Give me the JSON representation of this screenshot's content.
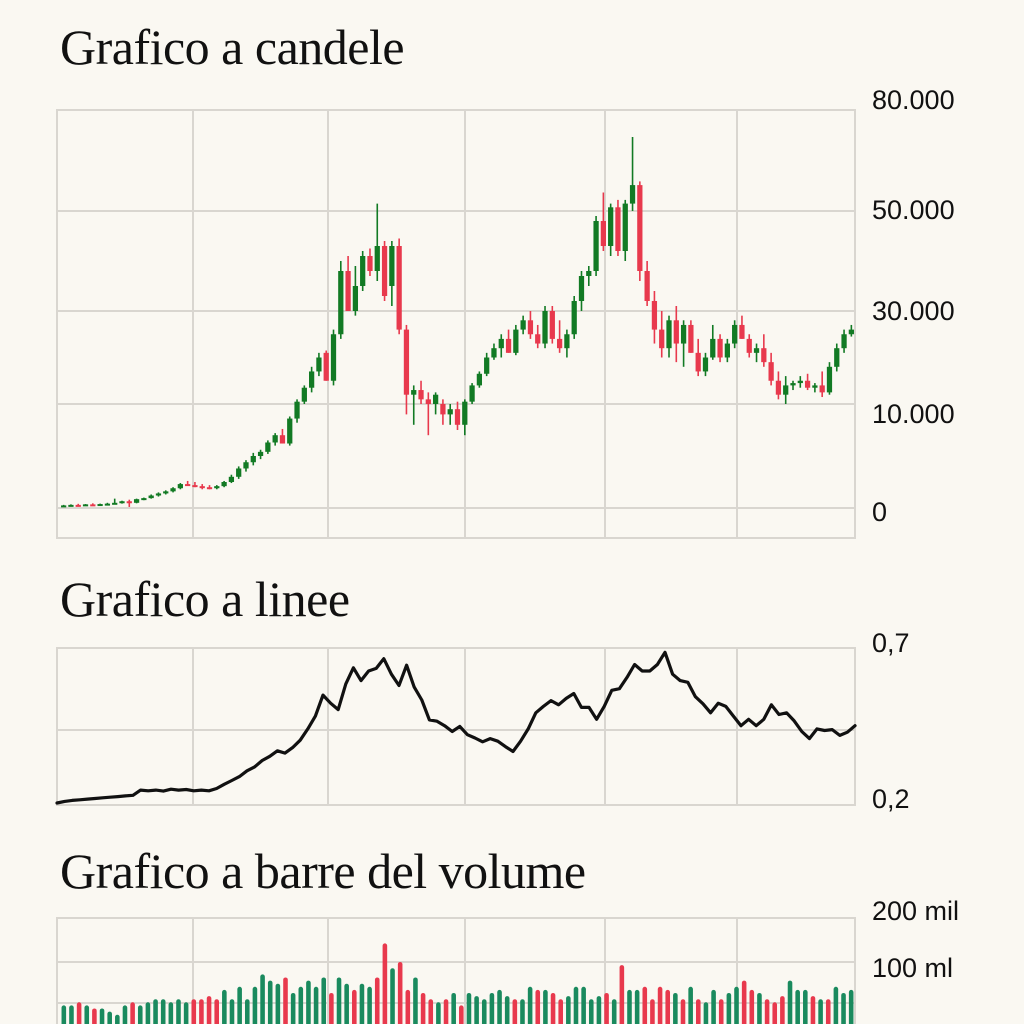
{
  "colors": {
    "background": "#faf8f2",
    "grid": "#d9d6d0",
    "up": "#127a24",
    "down": "#e8394d",
    "volume_up": "#1a8a5e",
    "volume_down": "#e8394d",
    "line": "#111111"
  },
  "titles": {
    "candle": "Grafico a candele",
    "line": "Grafico a linee",
    "volume": "Grafico a barre del volume"
  },
  "axes": {
    "candle_ticks": [
      "80.000",
      "50.000",
      "30.000",
      "10.000",
      "0"
    ],
    "line_ticks": [
      "0,7",
      "0,2"
    ],
    "volume_ticks": [
      "200 mil",
      "100 ml"
    ]
  },
  "chart_data": [
    {
      "type": "candlestick",
      "title": "Grafico a candele",
      "xlabel": "",
      "ylabel": "",
      "y_ticks": [
        0,
        10000,
        30000,
        50000,
        80000
      ],
      "y_tick_labels": [
        "0",
        "10.000",
        "30.000",
        "50.000",
        "80.000"
      ],
      "grid": true,
      "note": "OHLC values estimated from pixels; nonlinear axis spacing",
      "candles": [
        [
          200,
          300,
          150,
          250
        ],
        [
          250,
          350,
          200,
          300
        ],
        [
          300,
          400,
          250,
          280
        ],
        [
          280,
          380,
          220,
          350
        ],
        [
          350,
          450,
          300,
          320
        ],
        [
          320,
          420,
          260,
          380
        ],
        [
          380,
          500,
          320,
          420
        ],
        [
          420,
          900,
          350,
          500
        ],
        [
          500,
          700,
          420,
          650
        ],
        [
          650,
          800,
          100,
          500
        ],
        [
          500,
          900,
          450,
          850
        ],
        [
          850,
          1000,
          750,
          950
        ],
        [
          950,
          1300,
          900,
          1200
        ],
        [
          1200,
          1500,
          1100,
          1400
        ],
        [
          1400,
          1700,
          1300,
          1600
        ],
        [
          1600,
          2000,
          1500,
          1900
        ],
        [
          1900,
          2400,
          1800,
          2300
        ],
        [
          2300,
          2600,
          2200,
          2200
        ],
        [
          2200,
          2500,
          2000,
          2100
        ],
        [
          2100,
          2300,
          1800,
          2000
        ],
        [
          2000,
          2200,
          1800,
          1900
        ],
        [
          1900,
          2200,
          1800,
          2100
        ],
        [
          2100,
          2600,
          2000,
          2500
        ],
        [
          2500,
          3200,
          2400,
          3000
        ],
        [
          3000,
          4000,
          2800,
          3800
        ],
        [
          3800,
          4600,
          3500,
          4400
        ],
        [
          4400,
          5300,
          4100,
          5000
        ],
        [
          5000,
          5600,
          4700,
          5400
        ],
        [
          5400,
          6500,
          5200,
          6300
        ],
        [
          6300,
          7200,
          6000,
          7000
        ],
        [
          7000,
          7600,
          6200,
          6200
        ],
        [
          6200,
          8800,
          6000,
          8600
        ],
        [
          8600,
          11000,
          8200,
          10500
        ],
        [
          10500,
          14000,
          10000,
          13500
        ],
        [
          13500,
          18000,
          12500,
          17000
        ],
        [
          17000,
          21000,
          16000,
          20000
        ],
        [
          21000,
          21500,
          15000,
          15000
        ],
        [
          15000,
          26000,
          14000,
          25000
        ],
        [
          25000,
          40000,
          24000,
          38000
        ],
        [
          38000,
          41000,
          30000,
          30000
        ],
        [
          30000,
          39000,
          29000,
          35000
        ],
        [
          35000,
          42000,
          34000,
          41000
        ],
        [
          41000,
          42500,
          37000,
          38000
        ],
        [
          38000,
          52000,
          36000,
          43000
        ],
        [
          43000,
          44000,
          32000,
          33000
        ],
        [
          35000,
          44000,
          31000,
          43000
        ],
        [
          43000,
          44500,
          25000,
          26000
        ],
        [
          26000,
          27000,
          9000,
          12000
        ],
        [
          12000,
          14000,
          8000,
          13000
        ],
        [
          13000,
          15000,
          10000,
          11000
        ],
        [
          11000,
          12500,
          7000,
          10000
        ],
        [
          10000,
          12500,
          9000,
          12000
        ],
        [
          10000,
          11000,
          8000,
          9000
        ],
        [
          9000,
          10000,
          8000,
          9500
        ],
        [
          9500,
          10500,
          7500,
          8000
        ],
        [
          8000,
          11000,
          7000,
          10500
        ],
        [
          10500,
          14500,
          10000,
          14000
        ],
        [
          14000,
          17000,
          13500,
          16500
        ],
        [
          16500,
          21000,
          16000,
          20000
        ],
        [
          20000,
          23000,
          19500,
          22000
        ],
        [
          22000,
          25000,
          20000,
          24000
        ],
        [
          24000,
          26000,
          21000,
          21000
        ],
        [
          21000,
          27000,
          20500,
          26000
        ],
        [
          26000,
          29000,
          25000,
          28000
        ],
        [
          28000,
          30000,
          24000,
          25000
        ],
        [
          25000,
          27000,
          22000,
          23000
        ],
        [
          23000,
          31000,
          22000,
          30000
        ],
        [
          30000,
          31000,
          23000,
          24000
        ],
        [
          24000,
          28000,
          21000,
          22000
        ],
        [
          22000,
          26000,
          20000,
          25000
        ],
        [
          25000,
          33000,
          24000,
          32000
        ],
        [
          32000,
          38000,
          30000,
          37000
        ],
        [
          37000,
          39000,
          35000,
          38000
        ],
        [
          38000,
          49000,
          37000,
          48000
        ],
        [
          48000,
          55000,
          42000,
          43000
        ],
        [
          43000,
          52000,
          41000,
          51000
        ],
        [
          51000,
          53000,
          41000,
          42000
        ],
        [
          42000,
          53000,
          40000,
          52000
        ],
        [
          52000,
          70000,
          50000,
          57000
        ],
        [
          57000,
          58000,
          36000,
          38000
        ],
        [
          38000,
          40000,
          31000,
          32000
        ],
        [
          32000,
          34000,
          23000,
          26000
        ],
        [
          26000,
          30000,
          20000,
          22000
        ],
        [
          22000,
          29000,
          20000,
          28000
        ],
        [
          28000,
          31000,
          19000,
          23000
        ],
        [
          23000,
          28000,
          18000,
          27000
        ],
        [
          27000,
          28000,
          21000,
          21000
        ],
        [
          21000,
          24000,
          16000,
          17000
        ],
        [
          17000,
          21000,
          16000,
          20000
        ],
        [
          20000,
          27000,
          19500,
          24000
        ],
        [
          24000,
          25000,
          19000,
          20000
        ],
        [
          20000,
          24000,
          19000,
          23000
        ],
        [
          23000,
          28000,
          22000,
          27000
        ],
        [
          27000,
          29000,
          24000,
          24000
        ],
        [
          24000,
          25000,
          20000,
          21000
        ],
        [
          21000,
          23000,
          19000,
          22000
        ],
        [
          22000,
          25000,
          18000,
          19000
        ],
        [
          19000,
          21000,
          14000,
          15000
        ],
        [
          15000,
          17000,
          11000,
          12000
        ],
        [
          12000,
          16000,
          10000,
          14000
        ],
        [
          14000,
          15000,
          13000,
          14500
        ],
        [
          14500,
          16000,
          13500,
          15000
        ],
        [
          15000,
          16500,
          13000,
          13500
        ],
        [
          13500,
          14500,
          12500,
          14000
        ],
        [
          14000,
          17000,
          11500,
          12500
        ],
        [
          12500,
          19000,
          12000,
          18000
        ],
        [
          18000,
          23000,
          17000,
          22000
        ],
        [
          22000,
          26000,
          21000,
          25000
        ],
        [
          25000,
          27000,
          24500,
          26000
        ]
      ]
    },
    {
      "type": "line",
      "title": "Grafico a linee",
      "xlabel": "",
      "ylabel": "",
      "ylim": [
        0.2,
        0.7
      ],
      "y_tick_labels": [
        "0,7",
        "0,2"
      ],
      "grid": true,
      "values": [
        0.2,
        0.205,
        0.208,
        0.21,
        0.212,
        0.214,
        0.216,
        0.218,
        0.22,
        0.222,
        0.224,
        0.24,
        0.238,
        0.24,
        0.237,
        0.243,
        0.24,
        0.242,
        0.238,
        0.24,
        0.238,
        0.245,
        0.258,
        0.27,
        0.282,
        0.3,
        0.312,
        0.332,
        0.345,
        0.362,
        0.355,
        0.372,
        0.395,
        0.43,
        0.47,
        0.535,
        0.51,
        0.49,
        0.57,
        0.62,
        0.58,
        0.61,
        0.618,
        0.648,
        0.6,
        0.565,
        0.628,
        0.56,
        0.52,
        0.458,
        0.454,
        0.44,
        0.422,
        0.438,
        0.412,
        0.402,
        0.39,
        0.4,
        0.392,
        0.375,
        0.36,
        0.392,
        0.43,
        0.48,
        0.5,
        0.518,
        0.505,
        0.525,
        0.54,
        0.497,
        0.497,
        0.46,
        0.5,
        0.55,
        0.555,
        0.59,
        0.63,
        0.61,
        0.61,
        0.63,
        0.668,
        0.6,
        0.58,
        0.575,
        0.53,
        0.508,
        0.48,
        0.51,
        0.5,
        0.47,
        0.44,
        0.46,
        0.44,
        0.46,
        0.505,
        0.475,
        0.48,
        0.455,
        0.422,
        0.4,
        0.43,
        0.425,
        0.428,
        0.41,
        0.42,
        0.44
      ]
    },
    {
      "type": "bar",
      "title": "Grafico a barre del volume",
      "xlabel": "",
      "ylabel": "",
      "y_tick_labels": [
        "200 mil",
        "100 ml"
      ],
      "grid": true,
      "note": "Heights in millions, estimated; colored up (green) / down (red)",
      "values": [
        30,
        30,
        35,
        30,
        25,
        25,
        20,
        15,
        30,
        35,
        30,
        35,
        40,
        40,
        35,
        40,
        35,
        40,
        40,
        45,
        40,
        55,
        40,
        60,
        40,
        60,
        80,
        70,
        65,
        75,
        50,
        60,
        70,
        60,
        75,
        50,
        75,
        65,
        55,
        65,
        60,
        75,
        130,
        90,
        100,
        55,
        75,
        50,
        40,
        35,
        40,
        50,
        30,
        50,
        45,
        40,
        50,
        55,
        45,
        40,
        40,
        60,
        55,
        55,
        50,
        40,
        45,
        60,
        60,
        40,
        45,
        50,
        40,
        95,
        55,
        55,
        60,
        40,
        60,
        55,
        50,
        40,
        60,
        40,
        35,
        55,
        40,
        50,
        60,
        70,
        55,
        50,
        40,
        35,
        45,
        70,
        55,
        55,
        45,
        40,
        40,
        60,
        50,
        55
      ]
    }
  ]
}
